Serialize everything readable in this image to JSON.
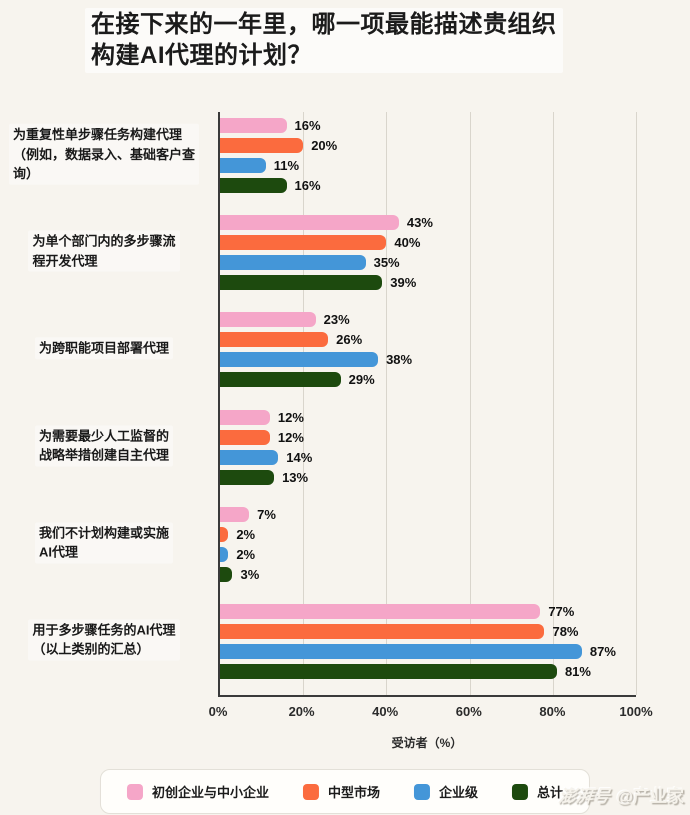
{
  "title": "在接下来的一年里，哪一项最能描述贵组织\n构建AI代理的计划？",
  "chart_data": {
    "type": "bar",
    "orientation": "horizontal",
    "title": "在接下来的一年里，哪一项最能描述贵组织构建AI代理的计划？",
    "categories": [
      "为重复性单步骤任务构建代理\n（例如，数据录入、基础客户查\n询）",
      "为单个部门内的多步骤流\n程开发代理",
      "为跨职能项目部署代理",
      "为需要最少人工监督的\n战略举措创建自主代理",
      "我们不计划构建或实施\nAI代理",
      "用于多步骤任务的AI代理\n（以上类别的汇总）"
    ],
    "series": [
      {
        "name": "初创企业与中小企业",
        "color": "#f5a6c8",
        "values": [
          16,
          43,
          23,
          12,
          7,
          77
        ]
      },
      {
        "name": "中型市场",
        "color": "#fb6b3e",
        "values": [
          20,
          40,
          26,
          12,
          2,
          78
        ]
      },
      {
        "name": "企业级",
        "color": "#4496d8",
        "values": [
          11,
          35,
          38,
          14,
          2,
          87
        ]
      },
      {
        "name": "总计",
        "color": "#1d4a0e",
        "values": [
          16,
          39,
          29,
          13,
          3,
          81
        ]
      }
    ],
    "value_suffix": "%",
    "xlabel": "受访者（%）",
    "x_ticks": [
      "0%",
      "20%",
      "40%",
      "60%",
      "80%",
      "100%"
    ],
    "xlim": [
      0,
      100
    ],
    "grid": true,
    "grid_color": "#d9d5cc",
    "axis_color": "#3a3a3a",
    "background_color": "#f7f4ee",
    "legend_position": "bottom"
  },
  "watermark": {
    "platform": "澎湃号",
    "handle": "@产业家"
  }
}
